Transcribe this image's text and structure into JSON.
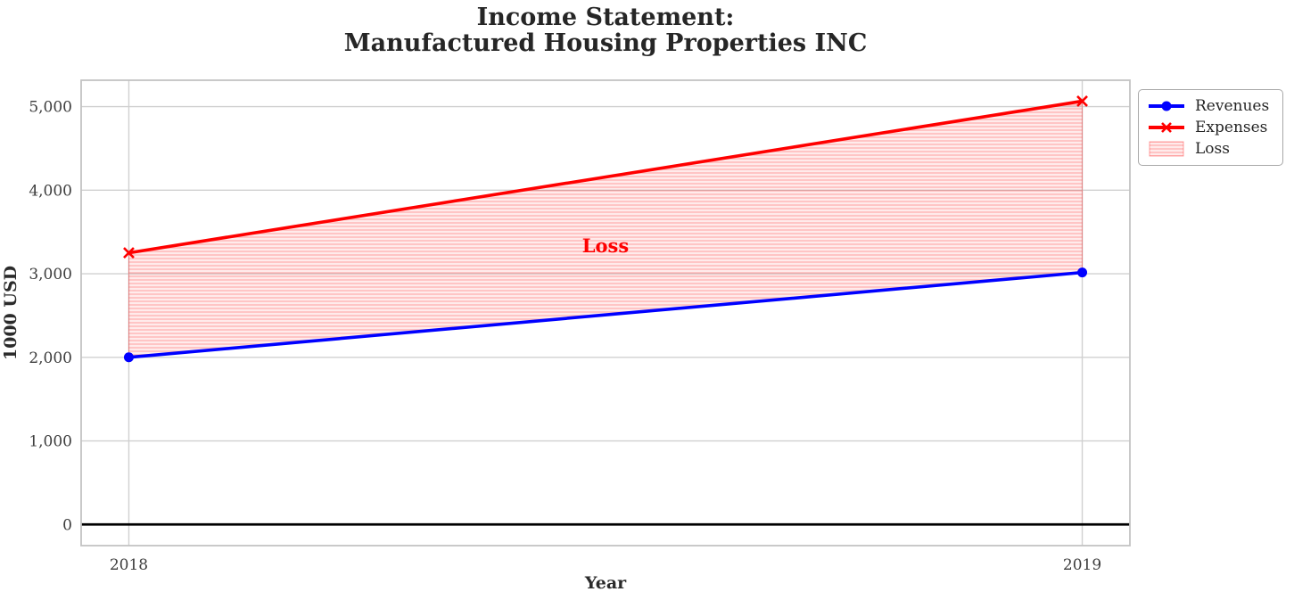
{
  "chart_data": {
    "type": "line",
    "title_line1": "Income Statement:",
    "title_line2": "Manufactured Housing Properties INC",
    "xlabel": "Year",
    "ylabel": "1000 USD",
    "x": [
      2018,
      2019
    ],
    "xtick_labels": [
      "2018",
      "2019"
    ],
    "yticks": [
      0,
      1000,
      2000,
      3000,
      4000,
      5000
    ],
    "ytick_labels": [
      "0",
      "1,000",
      "2,000",
      "3,000",
      "4,000",
      "5,000"
    ],
    "xlim": [
      2017.95,
      2019.05
    ],
    "ylim": [
      -253,
      5315
    ],
    "grid": true,
    "series": [
      {
        "name": "Revenues",
        "values": [
          2000,
          3015
        ],
        "color": "#0000ff",
        "marker": "circle"
      },
      {
        "name": "Expenses",
        "values": [
          3250,
          5065
        ],
        "color": "#ff0000",
        "marker": "x"
      }
    ],
    "loss_area": {
      "label": "Loss",
      "between": [
        "Expenses",
        "Revenues"
      ],
      "hatch": "horizontal",
      "color": "#ff0000"
    },
    "annotation": {
      "text": "Loss",
      "x": 2018.5,
      "y": 3330,
      "color": "#ff0000"
    },
    "zero_line": {
      "value": 0,
      "color": "#000000"
    },
    "legend": {
      "position": "upper right, outside plot",
      "entries": [
        {
          "label": "Revenues",
          "color": "#0000ff",
          "swatch": "line-circle"
        },
        {
          "label": "Expenses",
          "color": "#ff0000",
          "swatch": "line-x"
        },
        {
          "label": "Loss",
          "color": "#ff0000",
          "swatch": "hatched-patch"
        }
      ]
    },
    "colors": {
      "grid": "#d0d0d0",
      "spine": "#c3c3c3",
      "tick_label": "#3d3d3d",
      "title": "#262626"
    }
  }
}
